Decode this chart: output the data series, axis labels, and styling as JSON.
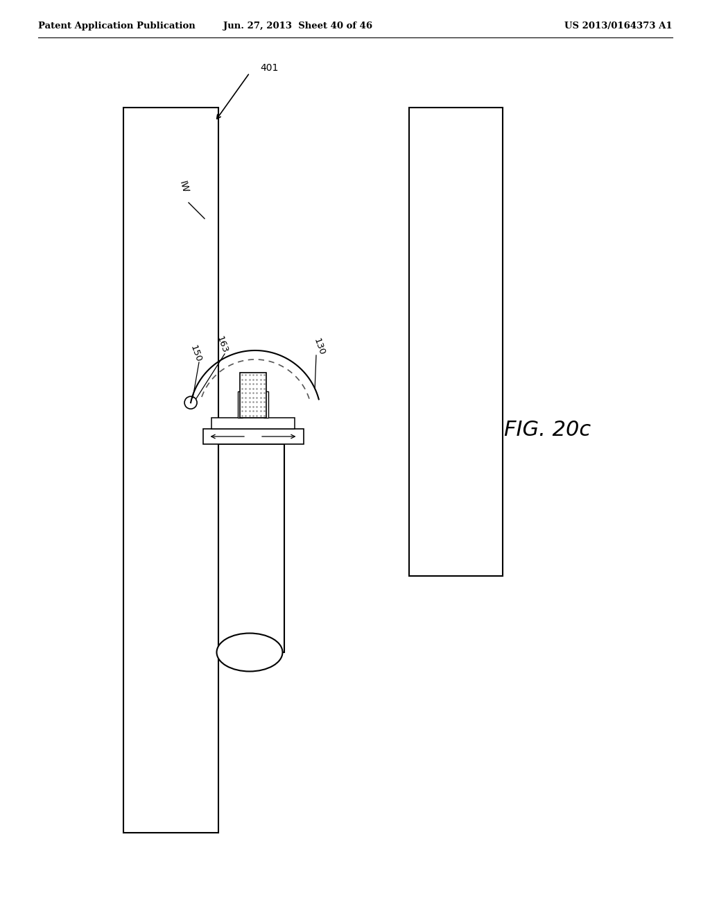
{
  "bg_color": "#ffffff",
  "header_left": "Patent Application Publication",
  "header_mid": "Jun. 27, 2013  Sheet 40 of 46",
  "header_right": "US 2013/0164373 A1",
  "fig_label": "FIG. 20c",
  "label_401": "401",
  "label_iw": "IW",
  "label_150": "150",
  "label_163": "163",
  "label_130": "130",
  "line_color": "#000000"
}
